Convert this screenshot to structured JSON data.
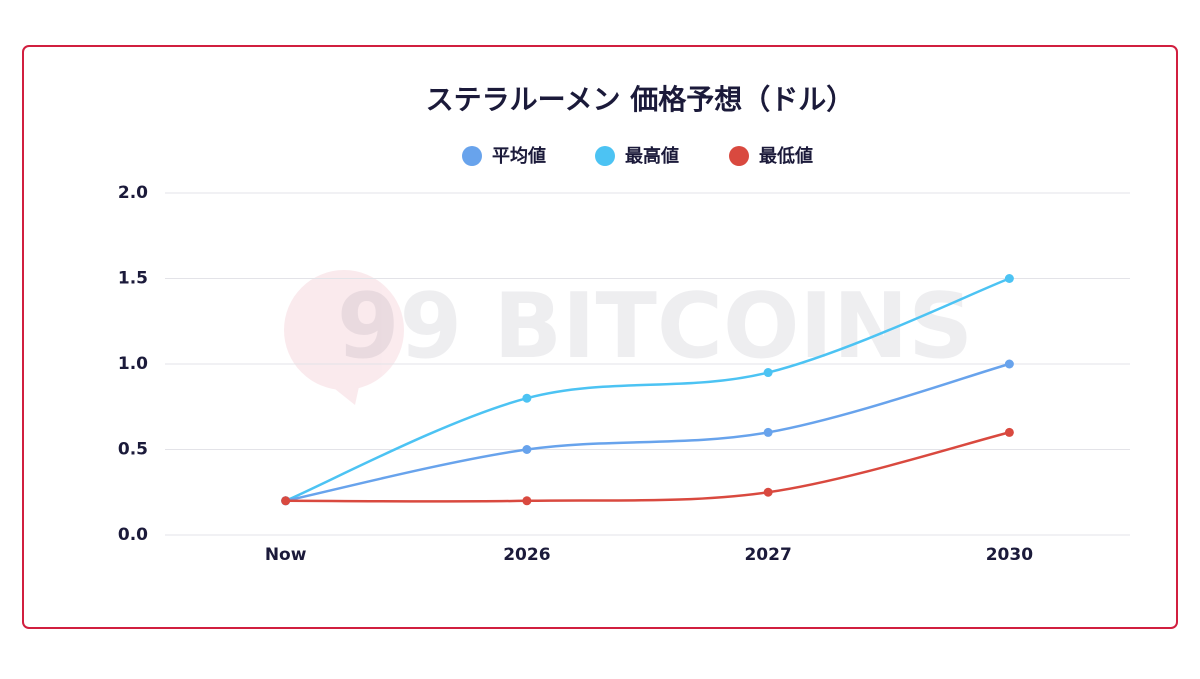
{
  "chart_data": {
    "type": "line",
    "title": "ステラルーメン 価格予想（ドル）",
    "watermark": "99 BITCOINS",
    "categories": [
      "Now",
      "2026",
      "2027",
      "2030"
    ],
    "series": [
      {
        "name": "平均値",
        "color": "#68a3ec",
        "values": [
          0.2,
          0.5,
          0.6,
          1.0
        ]
      },
      {
        "name": "最高値",
        "color": "#4cc3f3",
        "values": [
          0.2,
          0.8,
          0.95,
          1.5
        ]
      },
      {
        "name": "最低値",
        "color": "#d9493f",
        "values": [
          0.2,
          0.2,
          0.25,
          0.6
        ]
      }
    ],
    "ylim": [
      0,
      2
    ],
    "yticks": [
      {
        "value": 0,
        "label": "0.0"
      },
      0.5,
      {
        "value": 1,
        "label": "1.0"
      },
      1.5,
      {
        "value": 2,
        "label": "2.0"
      }
    ],
    "grid": true
  }
}
